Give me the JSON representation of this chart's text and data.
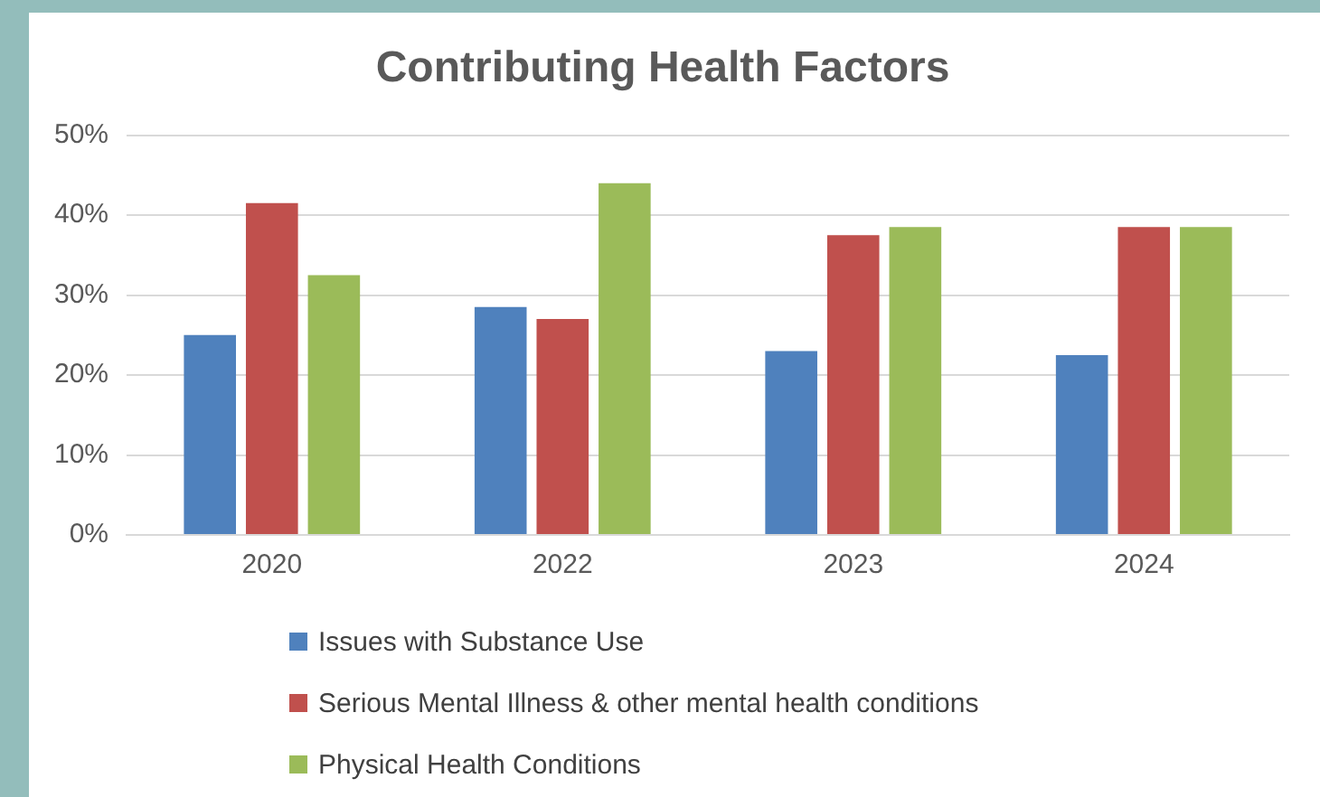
{
  "chart_data": {
    "type": "bar",
    "title": "Contributing Health Factors",
    "categories": [
      "2020",
      "2022",
      "2023",
      "2024"
    ],
    "series": [
      {
        "name": "Issues with Substance Use",
        "color": "#4f81bd",
        "values": [
          25,
          28.5,
          23,
          22.5
        ]
      },
      {
        "name": "Serious Mental Illness & other mental health conditions",
        "color": "#c0504d",
        "values": [
          41.5,
          27,
          37.5,
          38.5
        ]
      },
      {
        "name": "Physical Health Conditions",
        "color": "#9bbb59",
        "values": [
          32.5,
          44,
          38.5,
          38.5
        ]
      }
    ],
    "ylim": [
      0,
      50
    ],
    "yticks": [
      {
        "value": 0,
        "label": "0%"
      },
      {
        "value": 10,
        "label": "10%"
      },
      {
        "value": 20,
        "label": "20%"
      },
      {
        "value": 30,
        "label": "30%"
      },
      {
        "value": 40,
        "label": "40%"
      },
      {
        "value": 50,
        "label": "50%"
      }
    ],
    "grid": "y",
    "legend": "bottom"
  }
}
